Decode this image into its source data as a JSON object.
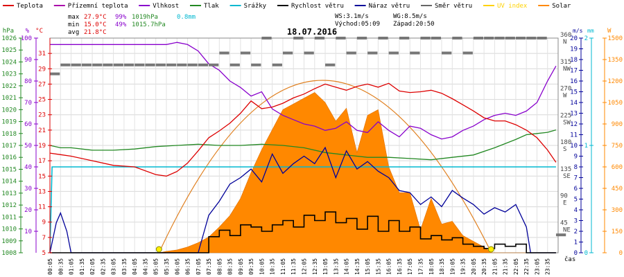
{
  "chart_data": {
    "type": "line",
    "title": "18.07.2016",
    "legend": [
      {
        "key": "temp",
        "label": "Teplota",
        "color": "#dd0000"
      },
      {
        "key": "feels",
        "label": "Přízemní teplota",
        "color": "#aa00aa"
      },
      {
        "key": "hum",
        "label": "Vlhkost",
        "color": "#8800cc"
      },
      {
        "key": "press",
        "label": "Tlak",
        "color": "#228822"
      },
      {
        "key": "rain",
        "label": "Srážky",
        "color": "#00b8d0"
      },
      {
        "key": "wind",
        "label": "Rychlost větru",
        "color": "#000000"
      },
      {
        "key": "gust",
        "label": "Náraz větru",
        "color": "#000099"
      },
      {
        "key": "dir",
        "label": "Směr větru",
        "color": "#666666"
      },
      {
        "key": "uv",
        "label": "UV index",
        "color": "#ffd200"
      },
      {
        "key": "solar",
        "label": "Solar",
        "color": "#ff8800"
      }
    ],
    "stats": {
      "max": {
        "label": "max",
        "temp": "27.9°C",
        "hum": "99%",
        "press": "1019hPa",
        "rain": "0.8mm"
      },
      "min": {
        "label": "min",
        "temp": "15.0°C",
        "hum": "49%",
        "press": "1015.7hPa"
      },
      "avg": {
        "label": "avg",
        "temp": "21.8°C"
      }
    },
    "info": {
      "ws": "WS:3.1m/s",
      "wg": "WG:8.5m/s",
      "sunrise": "Východ:05:09",
      "sunset": "Západ:20:50"
    },
    "axes": {
      "hpa": {
        "unit": "hPa",
        "range": [
          1008,
          1026
        ],
        "ticks": [
          "1008",
          "1009",
          "1010",
          "1011",
          "1012",
          "1013",
          "1014",
          "1015",
          "1016",
          "1017",
          "1018",
          "1019",
          "1020",
          "1021",
          "1022",
          "1023",
          "1024",
          "1025",
          "1026"
        ]
      },
      "pct": {
        "unit": "%",
        "range": [
          0,
          100
        ],
        "ticks": [
          "10",
          "20",
          "30",
          "40",
          "50",
          "60",
          "70",
          "80",
          "90",
          "100"
        ]
      },
      "degc": {
        "unit": "°C",
        "range": [
          5,
          33
        ],
        "ticks": [
          "5",
          "7",
          "9",
          "11",
          "13",
          "15",
          "17",
          "19",
          "21",
          "23",
          "25",
          "27",
          "29",
          "31"
        ]
      },
      "ms": {
        "unit": "m/s",
        "range": [
          0,
          20
        ],
        "ticks": [
          "0",
          "1",
          "2",
          "3",
          "4",
          "5",
          "6",
          "7",
          "8",
          "9",
          "10",
          "11",
          "12",
          "13",
          "14",
          "15",
          "16",
          "17",
          "18",
          "19",
          "20"
        ]
      },
      "dir": {
        "unit": "°",
        "range": [
          0,
          360
        ],
        "ticks": [
          {
            "v": "45",
            "n": "NE"
          },
          {
            "v": "90",
            "n": "E"
          },
          {
            "v": "135",
            "n": "SE"
          },
          {
            "v": "180",
            "n": "S"
          },
          {
            "v": "225",
            "n": "SW"
          },
          {
            "v": "270",
            "n": "W"
          },
          {
            "v": "315",
            "n": "NW"
          },
          {
            "v": "360",
            "n": "N"
          }
        ]
      },
      "mm": {
        "unit": "mm",
        "range": [
          0,
          2
        ],
        "ticks": [
          "0",
          "1",
          "2"
        ]
      },
      "w": {
        "unit": "W",
        "range": [
          0,
          1500
        ],
        "ticks": [
          "0",
          "150",
          "300",
          "450",
          "600",
          "750",
          "900",
          "1050",
          "1200",
          "1350",
          "1500"
        ]
      },
      "x": {
        "unit": "čas",
        "ticks": [
          "00:05",
          "00:35",
          "01:05",
          "01:35",
          "02:05",
          "02:35",
          "03:05",
          "03:35",
          "04:05",
          "04:35",
          "05:05",
          "05:35",
          "06:05",
          "06:35",
          "07:05",
          "07:35",
          "08:05",
          "08:35",
          "09:05",
          "09:35",
          "10:05",
          "10:35",
          "11:05",
          "11:35",
          "12:05",
          "12:35",
          "13:05",
          "13:35",
          "14:05",
          "14:35",
          "15:05",
          "15:35",
          "16:05",
          "16:35",
          "17:05",
          "17:35",
          "18:05",
          "18:35",
          "19:05",
          "19:35",
          "20:05",
          "20:35",
          "21:05",
          "21:35",
          "22:05",
          "22:35",
          "23:05",
          "23:35"
        ]
      }
    },
    "series": {
      "temp": {
        "x": [
          0,
          0.5,
          1,
          2,
          3,
          4,
          5,
          5.5,
          6,
          6.5,
          7,
          7.5,
          8,
          8.5,
          9,
          9.5,
          10,
          10.5,
          11,
          11.5,
          12,
          12.5,
          13,
          13.5,
          14,
          14.5,
          15,
          15.5,
          16,
          16.5,
          17,
          17.5,
          18,
          18.5,
          19,
          19.5,
          20,
          20.5,
          21,
          21.5,
          22,
          22.5,
          23,
          23.5,
          23.9
        ],
        "y": [
          18.0,
          17.8,
          17.6,
          17.0,
          16.4,
          16.2,
          15.2,
          15.0,
          15.6,
          16.7,
          18.3,
          20.0,
          20.9,
          21.9,
          23.2,
          24.8,
          23.8,
          24.0,
          24.5,
          25.2,
          25.7,
          26.4,
          27.0,
          26.6,
          26.2,
          26.7,
          27.0,
          26.6,
          27.1,
          26.1,
          25.9,
          26.0,
          26.2,
          25.8,
          25.1,
          24.3,
          23.5,
          22.6,
          22.2,
          22.2,
          21.7,
          21.0,
          20.0,
          18.4,
          16.8
        ]
      },
      "hum": {
        "x": [
          0,
          0.5,
          1,
          2,
          3,
          4,
          5,
          5.5,
          6,
          6.5,
          7,
          7.5,
          8,
          8.5,
          9,
          9.5,
          10,
          10.5,
          11,
          11.5,
          12,
          12.5,
          13,
          13.5,
          14,
          14.5,
          15,
          15.5,
          16,
          16.5,
          17,
          17.5,
          18,
          18.5,
          19,
          19.5,
          20,
          20.5,
          21,
          21.5,
          22,
          22.5,
          23,
          23.5,
          23.9
        ],
        "y": [
          97,
          97,
          97,
          97,
          97,
          97,
          97,
          97,
          98,
          97,
          94,
          88,
          85,
          80,
          77,
          73,
          75,
          67,
          64,
          62,
          60,
          59,
          57,
          58,
          61,
          57,
          56,
          61,
          57,
          54,
          59,
          58,
          55,
          53,
          54,
          57,
          59,
          62,
          64,
          65,
          64,
          66,
          70,
          80,
          87
        ]
      },
      "press": {
        "x": [
          0,
          0.5,
          1,
          2,
          3,
          4,
          5,
          6,
          7,
          8,
          9,
          10,
          11,
          12,
          13,
          14,
          15,
          16,
          17,
          18,
          19,
          20,
          21,
          22,
          22.5,
          23,
          23.5,
          23.9
        ],
        "y": [
          1017.0,
          1016.8,
          1016.8,
          1016.6,
          1016.6,
          1016.7,
          1016.9,
          1017.0,
          1017.1,
          1017.0,
          1017.0,
          1017.1,
          1017.0,
          1016.8,
          1016.4,
          1016.2,
          1016.0,
          1016.0,
          1015.9,
          1015.8,
          1016.0,
          1016.2,
          1016.8,
          1017.5,
          1017.9,
          1018.0,
          1018.1,
          1018.3
        ]
      },
      "rain": {
        "x": [
          0,
          0.1,
          0.2,
          23.9
        ],
        "y": [
          0.0,
          0.8,
          0.8,
          0.8
        ]
      },
      "wind": {
        "x": [
          0,
          6.5,
          7,
          7.5,
          8,
          8.5,
          9,
          9.5,
          10,
          10.5,
          11,
          11.5,
          12,
          12.5,
          13,
          13.5,
          14,
          14.5,
          15,
          15.5,
          16,
          16.5,
          17,
          17.5,
          18,
          18.5,
          19,
          19.5,
          20,
          20.5,
          21,
          21.5,
          22,
          22.5,
          23,
          23.9
        ],
        "y": [
          0,
          0,
          0,
          1.5,
          2.1,
          1.6,
          2.6,
          2.4,
          2.0,
          2.6,
          3.0,
          2.4,
          3.5,
          3.0,
          3.8,
          2.8,
          3.2,
          2.2,
          3.4,
          2.0,
          3.0,
          2.0,
          2.4,
          1.3,
          1.6,
          1.2,
          1.4,
          0.8,
          0.6,
          0.4,
          0.8,
          0.6,
          0.8,
          0,
          0,
          0
        ]
      },
      "gust": {
        "x": [
          0,
          0.3,
          0.5,
          0.8,
          1,
          6.5,
          7,
          7.5,
          8,
          8.5,
          9,
          9.5,
          10,
          10.5,
          11,
          11.5,
          12,
          12.5,
          13,
          13.5,
          14,
          14.5,
          15,
          15.5,
          16,
          16.5,
          17,
          17.5,
          18,
          18.5,
          19,
          19.5,
          20,
          20.5,
          21,
          21.5,
          22,
          22.5,
          22.7,
          23,
          23.9
        ],
        "y": [
          0,
          2.8,
          3.7,
          2.0,
          0,
          0,
          0,
          3.5,
          4.8,
          6.4,
          7.0,
          7.8,
          6.6,
          9.2,
          7.4,
          8.3,
          9.0,
          8.3,
          9.8,
          7.0,
          9.5,
          7.8,
          8.5,
          7.6,
          7.0,
          5.8,
          5.6,
          4.5,
          5.2,
          4.3,
          5.8,
          5.1,
          4.5,
          3.6,
          4.2,
          3.8,
          4.5,
          2.4,
          0,
          0,
          0
        ]
      },
      "solar": {
        "x": [
          0,
          5.15,
          5.5,
          6,
          6.5,
          7,
          7.5,
          8,
          8.5,
          9,
          9.5,
          10,
          10.5,
          11,
          11.5,
          12,
          12.5,
          13,
          13.5,
          14,
          14.5,
          15,
          15.5,
          16,
          16.5,
          17,
          17.5,
          18,
          18.5,
          19,
          19.5,
          20,
          20.5,
          20.85,
          23.9
        ],
        "y": [
          0,
          0,
          10,
          20,
          40,
          70,
          110,
          180,
          260,
          380,
          560,
          720,
          860,
          1000,
          1040,
          1080,
          1120,
          1050,
          920,
          1010,
          700,
          960,
          1000,
          600,
          420,
          420,
          160,
          380,
          200,
          220,
          120,
          80,
          40,
          0,
          0
        ]
      },
      "sunpath": {
        "x": [
          5.15,
          12.75,
          20.85
        ],
        "y": [
          0,
          1205,
          0
        ]
      },
      "dir": {
        "x": [
          0,
          0.5,
          1,
          1.5,
          2,
          2.5,
          3,
          3.5,
          4,
          4.5,
          5,
          5.5,
          6,
          6.5,
          7,
          7.5,
          8,
          8.5,
          9,
          9.5,
          10,
          10.5,
          11,
          11.5,
          12,
          12.5,
          13,
          13.5,
          14,
          14.5,
          15,
          15.5,
          16,
          16.5,
          17,
          17.5,
          18,
          18.5,
          19,
          19.5,
          20,
          20.5,
          21,
          21.5,
          22,
          22.5,
          23,
          23.9
        ],
        "y": [
          300,
          315,
          315,
          315,
          315,
          315,
          315,
          315,
          315,
          315,
          315,
          315,
          315,
          315,
          315,
          315,
          335,
          315,
          335,
          315,
          360,
          315,
          335,
          360,
          335,
          360,
          315,
          360,
          335,
          360,
          335,
          360,
          335,
          360,
          335,
          360,
          360,
          335,
          360,
          335,
          360,
          360,
          360,
          360,
          360,
          360,
          360,
          30
        ]
      }
    },
    "markers": {
      "sunrise": "05:09",
      "sunset": "20:50"
    }
  }
}
